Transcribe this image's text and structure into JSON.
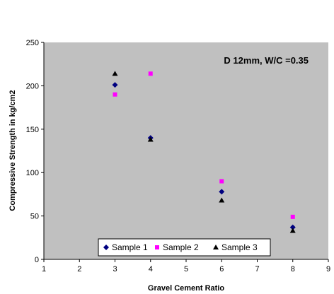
{
  "chart_data": {
    "type": "scatter",
    "title": "",
    "annotation": "D 12mm, W/C =0.35",
    "xlabel": "Gravel Cement Ratio",
    "ylabel": "Compressive Strength in kg/cm2",
    "xlim": [
      1,
      9
    ],
    "ylim": [
      0,
      250
    ],
    "xticks": [
      "1",
      "2",
      "3",
      "4",
      "5",
      "6",
      "7",
      "8",
      "9"
    ],
    "yticks": [
      "0",
      "50",
      "100",
      "150",
      "200",
      "250"
    ],
    "grid": false,
    "plot_background": "#c0c0c0",
    "legend": {
      "placement": "bottom-center"
    },
    "series": [
      {
        "name": "Sample 1",
        "marker": "diamond",
        "color": "#000080",
        "x": [
          3,
          4,
          6,
          8
        ],
        "y": [
          201,
          140,
          78,
          37
        ]
      },
      {
        "name": "Sample 2",
        "marker": "square",
        "color": "#ff00ff",
        "x": [
          3,
          4,
          6,
          8
        ],
        "y": [
          190,
          214,
          90,
          49
        ]
      },
      {
        "name": "Sample 3",
        "marker": "triangle",
        "color": "#000000",
        "x": [
          3,
          4,
          6,
          8
        ],
        "y": [
          214,
          138,
          68,
          33
        ]
      }
    ]
  }
}
